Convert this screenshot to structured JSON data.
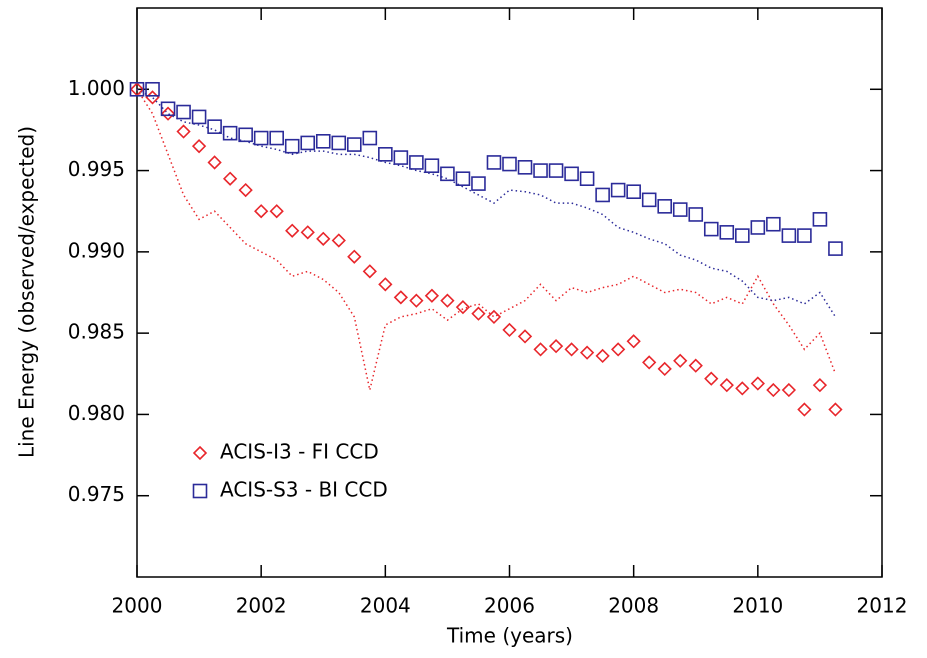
{
  "chart_data": {
    "type": "scatter",
    "xlabel": "Time (years)",
    "ylabel": "Line Energy (observed/expected)",
    "xlim": [
      2000,
      2012
    ],
    "xticks": [
      2000,
      2002,
      2004,
      2006,
      2008,
      2010,
      2012
    ],
    "ylim": [
      0.97,
      1.005
    ],
    "yticks": [
      0.975,
      {
        "value": 0.98,
        "label": "0.980"
      },
      0.985,
      {
        "value": 0.99,
        "label": "0.990"
      },
      0.995,
      {
        "value": 1,
        "label": "1.000"
      }
    ],
    "legend": "lower left",
    "x": [
      2000,
      2000.25,
      2000.5,
      2000.75,
      2001,
      2001.25,
      2001.5,
      2001.75,
      2002,
      2002.25,
      2002.5,
      2002.75,
      2003,
      2003.25,
      2003.5,
      2003.75,
      2004,
      2004.25,
      2004.5,
      2004.75,
      2005,
      2005.25,
      2005.5,
      2005.75,
      2006,
      2006.25,
      2006.5,
      2006.75,
      2007,
      2007.25,
      2007.5,
      2007.75,
      2008,
      2008.25,
      2008.5,
      2008.75,
      2009,
      2009.25,
      2009.5,
      2009.75,
      2010,
      2010.25,
      2010.5,
      2010.75,
      2011,
      2011.25
    ],
    "series": [
      {
        "name": "ACIS-I3 - FI CCD",
        "color": "#e8262b",
        "marker": "diamond",
        "values": [
          1.0,
          0.9995,
          0.9985,
          0.9974,
          0.9965,
          0.9955,
          0.9945,
          0.9938,
          0.9925,
          0.9925,
          0.9913,
          0.9912,
          0.9908,
          0.9907,
          0.9897,
          0.9888,
          0.988,
          0.9872,
          0.987,
          0.9873,
          0.987,
          0.9866,
          0.9862,
          0.986,
          0.9852,
          0.9848,
          0.984,
          0.9842,
          0.984,
          0.9838,
          0.9836,
          0.984,
          0.9845,
          0.9832,
          0.9828,
          0.9833,
          0.983,
          0.9822,
          0.9818,
          0.9816,
          0.9819,
          0.9815,
          0.9815,
          0.9803,
          0.9818,
          0.9803
        ]
      },
      {
        "name": "ACIS-S3 - BI CCD",
        "color": "#2b2b99",
        "marker": "square",
        "values": [
          1.0,
          1.0,
          0.9988,
          0.9986,
          0.9983,
          0.9977,
          0.9973,
          0.9972,
          0.997,
          0.997,
          0.9965,
          0.9967,
          0.9968,
          0.9967,
          0.9966,
          0.997,
          0.996,
          0.9958,
          0.9955,
          0.9953,
          0.9948,
          0.9945,
          0.9942,
          0.9955,
          0.9954,
          0.9952,
          0.995,
          0.995,
          0.9948,
          0.9945,
          0.9935,
          0.9938,
          0.9937,
          0.9932,
          0.9928,
          0.9926,
          0.9923,
          0.9914,
          0.9912,
          0.991,
          0.9915,
          0.9917,
          0.991,
          0.991,
          0.992,
          0.9902
        ]
      },
      {
        "color": "#e8262b",
        "marker": "dotted",
        "values": [
          1.0,
          0.9985,
          0.996,
          0.9935,
          0.992,
          0.9925,
          0.9915,
          0.9905,
          0.99,
          0.9895,
          0.9885,
          0.9888,
          0.9883,
          0.9875,
          0.986,
          0.9815,
          0.9855,
          0.986,
          0.9862,
          0.9865,
          0.9858,
          0.9865,
          0.9868,
          0.986,
          0.9865,
          0.987,
          0.988,
          0.987,
          0.9878,
          0.9875,
          0.9878,
          0.988,
          0.9885,
          0.988,
          0.9875,
          0.9877,
          0.9875,
          0.9868,
          0.9872,
          0.9868,
          0.9885,
          0.9868,
          0.9855,
          0.984,
          0.985,
          0.9825
        ]
      },
      {
        "color": "#2b2b99",
        "marker": "dotted",
        "values": [
          1.0,
          0.9995,
          0.9985,
          0.998,
          0.9978,
          0.9975,
          0.997,
          0.9968,
          0.9965,
          0.9963,
          0.996,
          0.9962,
          0.9962,
          0.996,
          0.996,
          0.9958,
          0.9955,
          0.9953,
          0.995,
          0.9948,
          0.9945,
          0.994,
          0.9935,
          0.993,
          0.9938,
          0.9937,
          0.9935,
          0.993,
          0.993,
          0.9927,
          0.9923,
          0.9915,
          0.9912,
          0.9908,
          0.9905,
          0.9898,
          0.9895,
          0.989,
          0.9888,
          0.9882,
          0.9872,
          0.987,
          0.9872,
          0.9868,
          0.9875,
          0.986
        ]
      }
    ]
  }
}
